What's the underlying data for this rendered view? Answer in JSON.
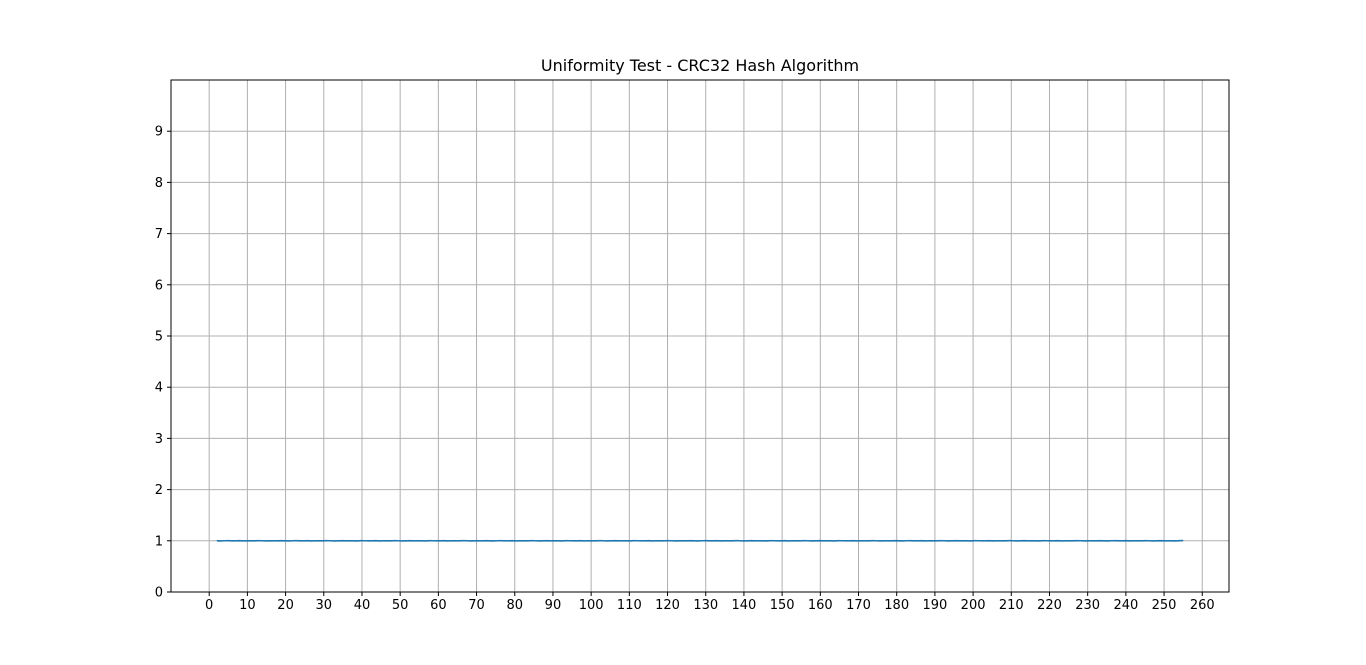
{
  "chart_data": {
    "type": "line",
    "title": "Uniformity Test - CRC32 Hash Algorithm",
    "xlabel": "",
    "ylabel": "",
    "xlim": [
      -10,
      267
    ],
    "ylim": [
      0,
      10
    ],
    "xticks": [
      0,
      10,
      20,
      30,
      40,
      50,
      60,
      70,
      80,
      90,
      100,
      110,
      120,
      130,
      140,
      150,
      160,
      170,
      180,
      190,
      200,
      210,
      220,
      230,
      240,
      250,
      260
    ],
    "yticks": [
      0,
      1,
      2,
      3,
      4,
      5,
      6,
      7,
      8,
      9
    ],
    "grid": true,
    "line_color": "#1f77b4",
    "grid_color": "#b0b0b0",
    "series": [
      {
        "x_start": 2,
        "x_end": 255,
        "y": [
          1.0,
          0.998,
          1.001,
          1.002,
          0.999,
          1.0,
          1.003,
          0.998,
          1.001,
          1.0,
          0.999,
          1.002,
          1.001,
          0.998,
          1.0,
          1.001,
          0.999,
          1.002,
          1.0,
          0.998,
          1.001,
          1.003,
          0.999,
          1.0,
          1.002,
          0.998,
          1.001,
          1.0,
          0.999,
          1.002,
          1.001,
          0.998,
          1.0,
          1.003,
          0.999,
          1.001,
          1.0,
          0.998,
          1.002,
          1.001,
          0.999,
          1.0,
          1.002,
          0.998,
          1.001,
          1.0,
          0.999,
          1.003,
          1.001,
          0.998,
          1.0,
          1.002,
          0.999,
          1.001,
          1.0,
          0.998,
          1.002,
          1.001,
          0.999,
          1.0,
          1.003,
          0.998,
          1.001,
          1.0,
          0.999,
          1.002,
          1.001,
          0.998,
          1.0,
          1.001,
          0.999,
          1.002,
          1.0,
          0.998,
          1.001,
          1.003,
          0.999,
          1.0,
          1.002,
          0.998,
          1.001,
          1.0,
          0.999,
          1.002,
          1.001,
          0.998,
          1.0,
          1.003,
          0.999,
          1.001,
          1.0,
          0.998,
          1.002,
          1.001,
          0.999,
          1.0,
          1.002,
          0.998,
          1.001,
          1.0,
          0.999,
          1.003,
          1.001,
          0.998,
          1.0,
          1.002,
          0.999,
          1.001,
          1.0,
          0.998,
          1.002,
          1.001,
          0.999,
          1.0,
          1.003,
          0.998,
          1.001,
          1.0,
          0.999,
          1.002,
          1.001,
          0.998,
          1.0,
          1.001,
          0.999,
          1.002,
          1.0,
          0.998,
          1.001,
          1.003,
          0.999,
          1.0,
          1.002,
          0.998,
          1.001,
          1.0,
          0.999,
          1.002,
          1.001,
          0.998,
          1.0,
          1.003,
          0.999,
          1.001,
          1.0,
          0.998,
          1.002,
          1.001,
          0.999,
          1.0,
          1.002,
          0.998,
          1.001,
          1.0,
          0.999,
          1.003,
          1.001,
          0.998,
          1.0,
          1.002,
          0.999,
          1.001,
          1.0,
          0.998,
          1.002,
          1.001,
          0.999,
          1.0,
          1.003,
          0.998,
          1.001,
          1.0,
          0.999,
          1.002,
          1.001,
          0.998,
          1.0,
          1.001,
          0.999,
          1.002,
          1.0,
          0.998,
          1.001,
          1.003,
          0.999,
          1.0,
          1.002,
          0.998,
          1.001,
          1.0,
          0.999,
          1.002,
          1.001,
          0.998,
          1.0,
          1.003,
          0.999,
          1.001,
          1.0,
          0.998,
          1.002,
          1.001,
          0.999,
          1.0,
          1.002,
          0.998,
          1.001,
          1.0,
          0.999,
          1.003,
          1.001,
          0.998,
          1.0,
          1.002,
          0.999,
          1.001,
          1.0,
          0.998,
          1.002,
          1.001,
          0.999,
          1.0,
          1.003,
          0.998,
          1.001,
          1.0,
          0.999,
          1.002,
          1.001,
          0.998,
          1.0,
          1.001,
          0.999,
          1.002,
          1.0,
          0.998,
          1.001,
          1.003,
          0.999,
          1.0,
          1.002,
          0.998,
          1.001,
          1.0,
          0.999,
          1.002,
          1.001,
          0.998,
          1.0,
          1.003,
          0.999,
          1.001,
          1.0,
          0.998,
          1.002,
          1.004
        ]
      }
    ]
  }
}
